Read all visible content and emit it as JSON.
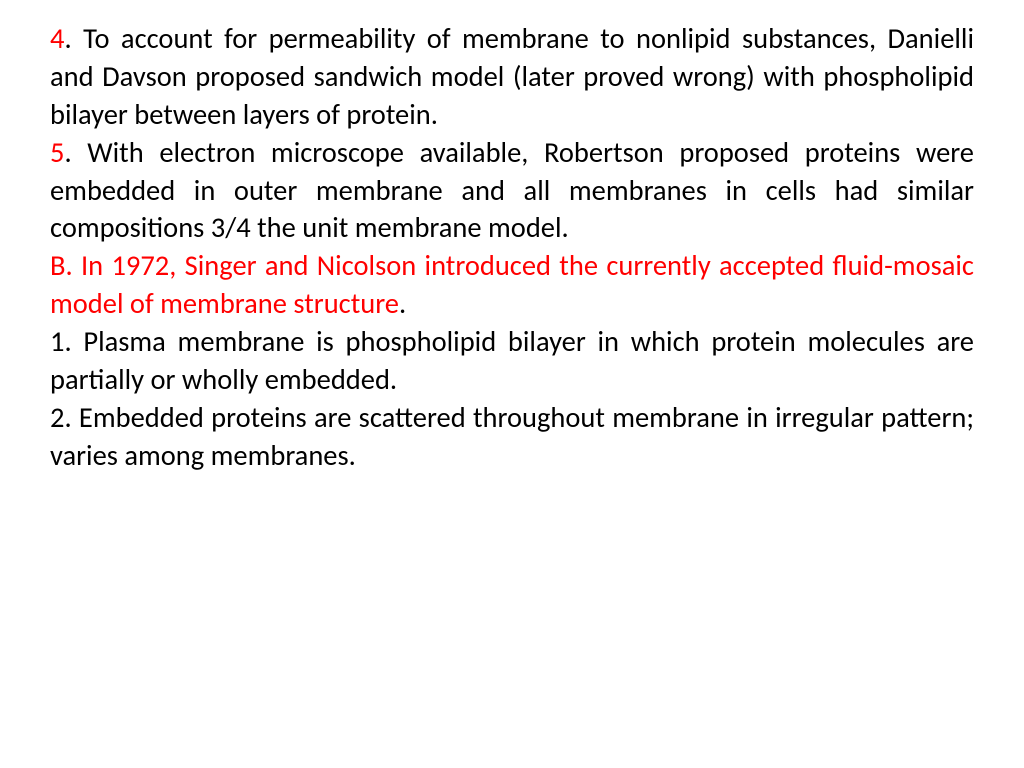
{
  "slide": {
    "background_color": "#ffffff",
    "text_color": "#000000",
    "accent_color": "#ff0000",
    "font_family": "Calibri",
    "font_size_pt": 21,
    "text_align": "justify",
    "line_height": 1.33,
    "points": [
      {
        "marker": "4",
        "marker_color": "#ff0000",
        "separator": ".  ",
        "text": "To account for permeability of membrane to nonlipid substances, Danielli and Davson proposed sandwich model (later proved wrong) with phospholipid bilayer between layers of protein.",
        "text_color": "#000000"
      },
      {
        "marker": "5",
        "marker_color": "#ff0000",
        "separator": ".  ",
        "text": "With electron microscope available, Robertson proposed proteins were embedded in outer membrane and all membranes in cells had similar compositions 3/4 the unit membrane model.",
        "text_color": "#000000"
      },
      {
        "marker": "B.  In 1972, Singer and Nicolson introduced the currently accepted fluid-mosaic model of membrane structure",
        "marker_color": "#ff0000",
        "separator": "",
        "text": ".",
        "text_color": "#000000"
      },
      {
        "marker": "",
        "marker_color": "#000000",
        "separator": "",
        "text": "1.  Plasma membrane is phospholipid bilayer in which protein molecules are partially or wholly embedded.",
        "text_color": "#000000"
      },
      {
        "marker": "",
        "marker_color": "#000000",
        "separator": "",
        "text": "2.  Embedded proteins are scattered throughout membrane in irregular pattern; varies among membranes.",
        "text_color": "#000000"
      }
    ]
  }
}
